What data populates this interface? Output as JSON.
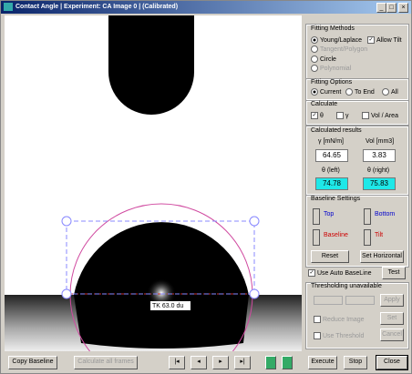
{
  "window": {
    "title": "Contact Angle | Experiment: CA Image 0 | (Calibrated)"
  },
  "image": {
    "label": "TK 63.0 du"
  },
  "fitting_methods": {
    "title": "Fitting Methods",
    "young_laplace": "Young/Laplace",
    "allow_tilt": "Allow Tilt",
    "tangent": "Tangent/Polygon",
    "circle": "Circle",
    "polynomial": "Polynomial"
  },
  "fitting_options": {
    "title": "Fitting Options",
    "current": "Current",
    "to_end": "To End",
    "all": "All"
  },
  "calculate": {
    "title": "Calculate",
    "theta": "θ",
    "gamma": "γ",
    "vol_area": "Vol / Area"
  },
  "results": {
    "title": "Calculated results",
    "gamma_label": "γ [mN/m]",
    "gamma": 64.65,
    "vol_label": "Vol [mm3]",
    "vol": 3.83,
    "theta_left_label": "θ (left)",
    "theta_left": 74.78,
    "theta_right_label": "θ (right)",
    "theta_right": 75.83
  },
  "baseline": {
    "title": "Baseline Settings",
    "top": "Top",
    "bottom": "Bottom",
    "baseline": "Baseline",
    "tilt": "Tilt",
    "reset": "Reset",
    "set_horizontal": "Set Horizontal",
    "auto": "Use Auto BaseLine",
    "test": "Test"
  },
  "threshold": {
    "title": "Thresholding unavailable",
    "apply": "Apply",
    "reduce": "Reduce Image",
    "set": "Set",
    "use": "Use Threshold",
    "cancel": "Cancel"
  },
  "toolbar": {
    "copy_baseline": "Copy Baseline",
    "calc_all": "Calculate all frames",
    "execute": "Execute",
    "stop": "Stop",
    "close": "Close"
  }
}
